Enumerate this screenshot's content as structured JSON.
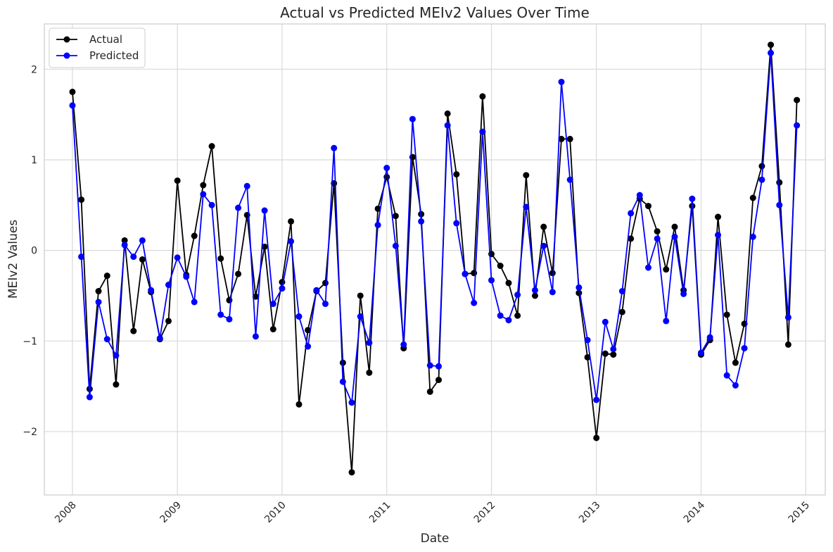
{
  "chart_data": {
    "type": "line",
    "title": "Actual vs Predicted MEIv2 Values Over Time",
    "xlabel": "Date",
    "ylabel": "MEIv2 Values",
    "ylim": [
      -2.7,
      2.5
    ],
    "xlim": [
      "2007-09-25",
      "2015-03-10"
    ],
    "yticks": [
      2,
      1,
      0,
      -1,
      -2
    ],
    "ytick_labels": [
      "2",
      "1",
      "0",
      "−1",
      "−2"
    ],
    "xticks": [
      "2008-01-01",
      "2009-01-01",
      "2010-01-01",
      "2011-01-01",
      "2012-01-01",
      "2013-01-01",
      "2014-01-01",
      "2015-01-01"
    ],
    "xtick_labels": [
      "2008",
      "2009",
      "2010",
      "2011",
      "2012",
      "2013",
      "2014",
      "2015"
    ],
    "grid": true,
    "legend_position": "top-left",
    "x": [
      "2008-01",
      "2008-02",
      "2008-03",
      "2008-04",
      "2008-05",
      "2008-06",
      "2008-07",
      "2008-08",
      "2008-09",
      "2008-10",
      "2008-11",
      "2008-12",
      "2009-01",
      "2009-02",
      "2009-03",
      "2009-04",
      "2009-05",
      "2009-06",
      "2009-07",
      "2009-08",
      "2009-09",
      "2009-10",
      "2009-11",
      "2009-12",
      "2010-01",
      "2010-02",
      "2010-03",
      "2010-04",
      "2010-05",
      "2010-06",
      "2010-07",
      "2010-08",
      "2010-09",
      "2010-10",
      "2010-11",
      "2010-12",
      "2011-01",
      "2011-02",
      "2011-03",
      "2011-04",
      "2011-05",
      "2011-06",
      "2011-07",
      "2011-08",
      "2011-09",
      "2011-10",
      "2011-11",
      "2011-12",
      "2012-01",
      "2012-02",
      "2012-03",
      "2012-04",
      "2012-05",
      "2012-06",
      "2012-07",
      "2012-08",
      "2012-09",
      "2012-10",
      "2012-11",
      "2012-12",
      "2013-01",
      "2013-02",
      "2013-03",
      "2013-04",
      "2013-05",
      "2013-06",
      "2013-07",
      "2013-08",
      "2013-09",
      "2013-10",
      "2013-11",
      "2013-12",
      "2014-01",
      "2014-02",
      "2014-03",
      "2014-04",
      "2014-05",
      "2014-06",
      "2014-07",
      "2014-08",
      "2014-09",
      "2014-10",
      "2014-11",
      "2014-12"
    ],
    "series": [
      {
        "name": "Actual",
        "color": "#000000",
        "values": [
          1.75,
          0.56,
          -1.53,
          -0.45,
          -0.28,
          -1.48,
          0.11,
          -0.89,
          -0.1,
          -0.46,
          -0.98,
          -0.78,
          0.77,
          -0.27,
          0.16,
          0.72,
          1.15,
          -0.09,
          -0.55,
          -0.26,
          0.39,
          -0.51,
          0.04,
          -0.87,
          -0.35,
          0.32,
          -1.7,
          -0.88,
          -0.45,
          -0.36,
          0.74,
          -1.24,
          -2.45,
          -0.5,
          -1.35,
          0.46,
          0.81,
          0.38,
          -1.08,
          1.03,
          0.4,
          -1.56,
          -1.43,
          1.51,
          0.84,
          -0.26,
          -0.25,
          1.7,
          -0.04,
          -0.17,
          -0.36,
          -0.72,
          0.83,
          -0.5,
          0.26,
          -0.25,
          1.23,
          1.23,
          -0.47,
          -1.18,
          -2.07,
          -1.14,
          -1.15,
          -0.68,
          0.13,
          0.57,
          0.49,
          0.21,
          -0.21,
          0.26,
          -0.44,
          0.49,
          -1.15,
          -0.99,
          0.37,
          -0.71,
          -1.24,
          -0.81,
          0.58,
          0.93,
          2.27,
          0.75,
          -1.04,
          1.66
        ]
      },
      {
        "name": "Predicted",
        "color": "#0000ff",
        "values": [
          1.6,
          -0.07,
          -1.62,
          -0.57,
          -0.98,
          -1.16,
          0.06,
          -0.07,
          0.11,
          -0.44,
          -0.97,
          -0.38,
          -0.08,
          -0.29,
          -0.57,
          0.62,
          0.5,
          -0.71,
          -0.76,
          0.47,
          0.71,
          -0.95,
          0.44,
          -0.59,
          -0.42,
          0.1,
          -0.73,
          -1.06,
          -0.44,
          -0.59,
          1.13,
          -1.45,
          -1.68,
          -0.73,
          -1.02,
          0.28,
          0.91,
          0.05,
          -1.04,
          1.45,
          0.32,
          -1.27,
          -1.28,
          1.38,
          0.3,
          -0.26,
          -0.58,
          1.31,
          -0.33,
          -0.72,
          -0.77,
          -0.49,
          0.48,
          -0.44,
          0.05,
          -0.46,
          1.86,
          0.78,
          -0.41,
          -0.99,
          -1.65,
          -0.79,
          -1.09,
          -0.45,
          0.41,
          0.61,
          -0.19,
          0.13,
          -0.78,
          0.15,
          -0.48,
          0.57,
          -1.13,
          -0.96,
          0.17,
          -1.38,
          -1.49,
          -1.08,
          0.15,
          0.78,
          2.18,
          0.5,
          -0.74,
          1.38
        ]
      }
    ]
  }
}
